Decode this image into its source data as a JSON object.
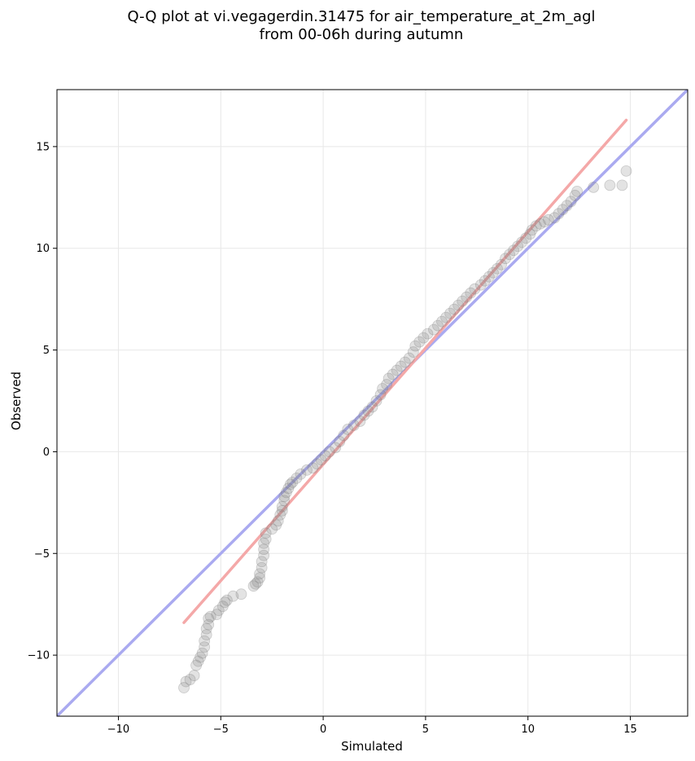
{
  "chart_data": {
    "type": "scatter",
    "title_line1": "Q-Q plot at vi.vegagerdin.31475 for air_temperature_at_2m_agl",
    "title_line2": "from 00-06h during autumn",
    "xlabel": "Simulated",
    "ylabel": "Observed",
    "xlim": [
      -13,
      17.8
    ],
    "ylim": [
      -13,
      17.8
    ],
    "xticks": [
      -10,
      -5,
      0,
      5,
      10,
      15
    ],
    "yticks": [
      -10,
      -5,
      0,
      5,
      10,
      15
    ],
    "xtick_labels": [
      "−10",
      "−5",
      "0",
      "5",
      "10",
      "15"
    ],
    "ytick_labels": [
      "−10",
      "−5",
      "0",
      "5",
      "10",
      "15"
    ],
    "grid": true,
    "reference_lines": [
      {
        "color": "#aaaaf0",
        "x": [
          -13,
          17.8
        ],
        "y": [
          -13,
          17.8
        ]
      },
      {
        "color": "#f4a8a8",
        "x": [
          -6.8,
          14.8
        ],
        "y": [
          -8.4,
          16.3
        ]
      }
    ],
    "series": [
      {
        "color": "#808080",
        "points": [
          [
            -6.8,
            -11.6
          ],
          [
            -6.7,
            -11.3
          ],
          [
            -6.5,
            -11.2
          ],
          [
            -6.3,
            -11.0
          ],
          [
            -6.2,
            -10.5
          ],
          [
            -6.1,
            -10.3
          ],
          [
            -6.0,
            -10.1
          ],
          [
            -5.9,
            -9.9
          ],
          [
            -5.8,
            -9.6
          ],
          [
            -5.8,
            -9.3
          ],
          [
            -5.7,
            -9.0
          ],
          [
            -5.7,
            -8.7
          ],
          [
            -5.6,
            -8.5
          ],
          [
            -5.6,
            -8.2
          ],
          [
            -5.5,
            -8.1
          ],
          [
            -5.2,
            -8.0
          ],
          [
            -5.1,
            -7.8
          ],
          [
            -4.9,
            -7.6
          ],
          [
            -4.8,
            -7.4
          ],
          [
            -4.7,
            -7.3
          ],
          [
            -4.4,
            -7.1
          ],
          [
            -4.0,
            -7.0
          ],
          [
            -3.4,
            -6.6
          ],
          [
            -3.3,
            -6.5
          ],
          [
            -3.2,
            -6.4
          ],
          [
            -3.1,
            -6.2
          ],
          [
            -3.1,
            -6.0
          ],
          [
            -3.0,
            -5.7
          ],
          [
            -3.0,
            -5.4
          ],
          [
            -2.9,
            -5.1
          ],
          [
            -2.9,
            -4.8
          ],
          [
            -2.9,
            -4.5
          ],
          [
            -2.8,
            -4.3
          ],
          [
            -2.8,
            -4.0
          ],
          [
            -2.5,
            -3.8
          ],
          [
            -2.3,
            -3.6
          ],
          [
            -2.2,
            -3.4
          ],
          [
            -2.1,
            -3.1
          ],
          [
            -2.0,
            -2.9
          ],
          [
            -2.0,
            -2.7
          ],
          [
            -1.9,
            -2.4
          ],
          [
            -1.9,
            -2.2
          ],
          [
            -1.8,
            -2.0
          ],
          [
            -1.7,
            -1.8
          ],
          [
            -1.6,
            -1.6
          ],
          [
            -1.5,
            -1.5
          ],
          [
            -1.3,
            -1.3
          ],
          [
            -1.1,
            -1.1
          ],
          [
            -0.8,
            -0.9
          ],
          [
            -0.5,
            -0.8
          ],
          [
            -0.3,
            -0.6
          ],
          [
            -0.1,
            -0.4
          ],
          [
            0.1,
            -0.2
          ],
          [
            0.3,
            0.0
          ],
          [
            0.6,
            0.2
          ],
          [
            0.8,
            0.5
          ],
          [
            1.0,
            0.8
          ],
          [
            1.2,
            1.1
          ],
          [
            1.5,
            1.3
          ],
          [
            1.8,
            1.5
          ],
          [
            2.0,
            1.8
          ],
          [
            2.2,
            2.0
          ],
          [
            2.4,
            2.2
          ],
          [
            2.6,
            2.5
          ],
          [
            2.8,
            2.8
          ],
          [
            2.9,
            3.1
          ],
          [
            3.1,
            3.3
          ],
          [
            3.2,
            3.6
          ],
          [
            3.4,
            3.8
          ],
          [
            3.6,
            4.0
          ],
          [
            3.8,
            4.2
          ],
          [
            4.0,
            4.4
          ],
          [
            4.2,
            4.6
          ],
          [
            4.4,
            4.9
          ],
          [
            4.5,
            5.2
          ],
          [
            4.7,
            5.4
          ],
          [
            4.9,
            5.6
          ],
          [
            5.1,
            5.8
          ],
          [
            5.4,
            6.0
          ],
          [
            5.6,
            6.2
          ],
          [
            5.8,
            6.4
          ],
          [
            6.0,
            6.6
          ],
          [
            6.2,
            6.8
          ],
          [
            6.4,
            7.0
          ],
          [
            6.6,
            7.2
          ],
          [
            6.8,
            7.4
          ],
          [
            7.0,
            7.6
          ],
          [
            7.2,
            7.8
          ],
          [
            7.4,
            8.0
          ],
          [
            7.7,
            8.2
          ],
          [
            7.9,
            8.4
          ],
          [
            8.1,
            8.6
          ],
          [
            8.3,
            8.8
          ],
          [
            8.5,
            9.0
          ],
          [
            8.7,
            9.2
          ],
          [
            8.9,
            9.5
          ],
          [
            9.1,
            9.7
          ],
          [
            9.3,
            9.9
          ],
          [
            9.5,
            10.1
          ],
          [
            9.7,
            10.3
          ],
          [
            9.9,
            10.5
          ],
          [
            10.1,
            10.7
          ],
          [
            10.2,
            10.9
          ],
          [
            10.4,
            11.1
          ],
          [
            10.6,
            11.2
          ],
          [
            10.8,
            11.3
          ],
          [
            11.0,
            11.4
          ],
          [
            11.3,
            11.5
          ],
          [
            11.5,
            11.7
          ],
          [
            11.7,
            11.9
          ],
          [
            11.9,
            12.1
          ],
          [
            12.1,
            12.3
          ],
          [
            12.3,
            12.6
          ],
          [
            12.4,
            12.8
          ],
          [
            13.2,
            13.0
          ],
          [
            14.0,
            13.1
          ],
          [
            14.6,
            13.1
          ],
          [
            14.8,
            13.8
          ]
        ]
      }
    ]
  }
}
